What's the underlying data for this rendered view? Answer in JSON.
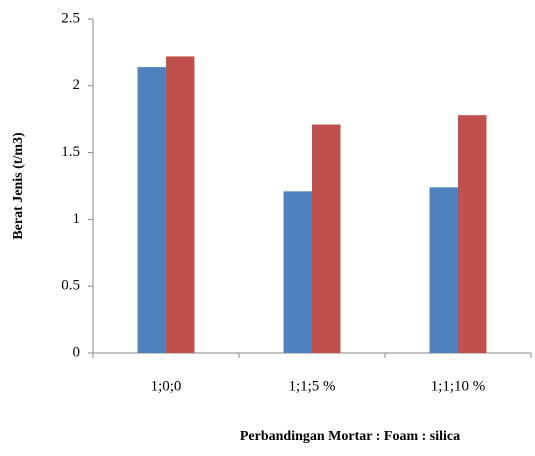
{
  "chart_data": {
    "type": "bar",
    "y_label": "Berat Jenis (t/m3)",
    "x_label": "Perbandingan Mortar : Foam : silica",
    "categories": [
      "1;0;0",
      "1;1;5 %",
      "1;1;10 %"
    ],
    "series": [
      {
        "color": "#4f81bd",
        "values": [
          2.14,
          1.21,
          1.24
        ]
      },
      {
        "color": "#c0504d",
        "values": [
          2.22,
          1.71,
          1.78
        ]
      }
    ],
    "ylim": [
      0,
      2.5
    ],
    "yticks": [
      0,
      0.5,
      1,
      1.5,
      2,
      2.5
    ],
    "grid": false
  }
}
